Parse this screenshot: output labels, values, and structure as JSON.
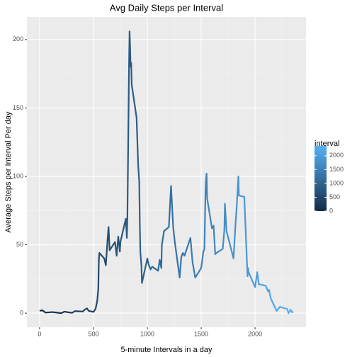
{
  "chart_data": {
    "type": "line",
    "title": "Avg Daily Steps per Interval",
    "x_label": "5-minute Intervals in a day",
    "y_label": "Average Steps per Interval Per day",
    "legend_title": "interval",
    "color_low": "#132B43",
    "color_high": "#56B1F7",
    "color_lim": [
      0,
      2355
    ],
    "color_ticks": [
      0,
      500,
      1000,
      1500,
      2000
    ],
    "xlim": [
      -117.75,
      2472.75
    ],
    "ylim": [
      -10.3,
      216.5
    ],
    "xticks": [
      0,
      500,
      1000,
      1500,
      2000
    ],
    "yticks": [
      0,
      50,
      100,
      150,
      200
    ],
    "xminor_ticks": [
      250,
      750,
      1250,
      1750,
      2250
    ],
    "yminor_ticks": [
      25,
      75,
      125,
      175
    ],
    "grid": true,
    "x": [
      0,
      25,
      55,
      120,
      200,
      230,
      300,
      330,
      400,
      420,
      440,
      455,
      500,
      520,
      535,
      545,
      550,
      555,
      600,
      615,
      630,
      640,
      650,
      700,
      715,
      730,
      745,
      750,
      800,
      810,
      815,
      830,
      835,
      840,
      845,
      850,
      855,
      900,
      915,
      925,
      930,
      935,
      945,
      950,
      1000,
      1010,
      1030,
      1045,
      1100,
      1115,
      1130,
      1135,
      1155,
      1200,
      1210,
      1220,
      1240,
      1255,
      1300,
      1315,
      1330,
      1345,
      1400,
      1420,
      1445,
      1500,
      1520,
      1530,
      1540,
      1545,
      1550,
      1555,
      1600,
      1615,
      1630,
      1640,
      1700,
      1715,
      1720,
      1735,
      1800,
      1820,
      1830,
      1845,
      1850,
      1900,
      1930,
      1935,
      1940,
      2000,
      2020,
      2035,
      2045,
      2100,
      2120,
      2130,
      2145,
      2200,
      2230,
      2300,
      2310,
      2320,
      2330,
      2345,
      2355
    ],
    "series": [
      {
        "name": "interval",
        "values": [
          1.7,
          2.1,
          0.4,
          0.8,
          0,
          1.1,
          0.2,
          1.5,
          1.2,
          2.6,
          3.5,
          1.7,
          0.9,
          3.3,
          9,
          18,
          39,
          44,
          40,
          35,
          53,
          63,
          46,
          52,
          42,
          56,
          45,
          52,
          69,
          55,
          70,
          180,
          206,
          195,
          180,
          183,
          167,
          143,
          108,
          96,
          66,
          45,
          35,
          22,
          40,
          36,
          32,
          34,
          31,
          39,
          33,
          50,
          60,
          63,
          78,
          93,
          63,
          52,
          26,
          41,
          44,
          42,
          55,
          37,
          26,
          33,
          45,
          47,
          90,
          98,
          102,
          84,
          62,
          64,
          43,
          44,
          47,
          61,
          80,
          60,
          40,
          67,
          78,
          100,
          86,
          85,
          27,
          33,
          30,
          19,
          30,
          21,
          21,
          20,
          16,
          17,
          11,
          1.6,
          4.6,
          3,
          0,
          1,
          2.6,
          0.6,
          1.1
        ]
      }
    ]
  }
}
